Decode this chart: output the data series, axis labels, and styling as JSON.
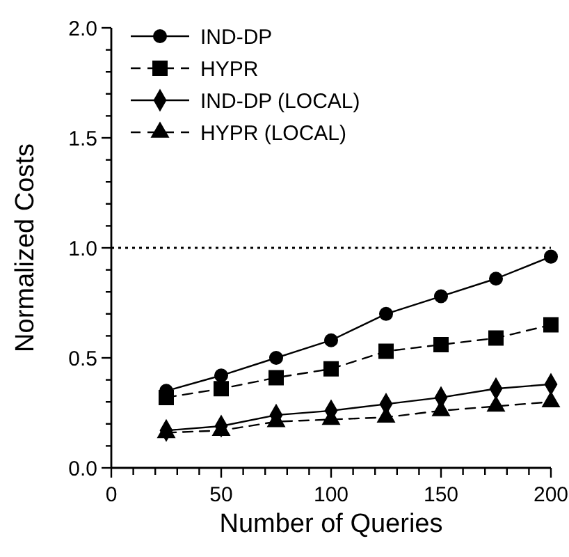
{
  "chart_data": {
    "type": "line",
    "xlabel": "Number of Queries",
    "ylabel": "Normalized Costs",
    "x": [
      25,
      50,
      75,
      100,
      125,
      150,
      175,
      200
    ],
    "series": [
      {
        "name": "IND-DP",
        "color": "#000000",
        "marker": "circle",
        "line_style": "solid",
        "values": [
          0.35,
          0.42,
          0.5,
          0.58,
          0.7,
          0.78,
          0.86,
          0.96
        ]
      },
      {
        "name": "HYPR",
        "color": "#000000",
        "marker": "square",
        "line_style": "dashed",
        "values": [
          0.32,
          0.36,
          0.41,
          0.45,
          0.53,
          0.56,
          0.59,
          0.65
        ]
      },
      {
        "name": "IND-DP (LOCAL)",
        "color": "#000000",
        "marker": "diamond",
        "line_style": "solid",
        "values": [
          0.17,
          0.19,
          0.24,
          0.26,
          0.29,
          0.32,
          0.36,
          0.38
        ]
      },
      {
        "name": "HYPR (LOCAL)",
        "color": "#000000",
        "marker": "triangle",
        "line_style": "dashed",
        "values": [
          0.16,
          0.17,
          0.21,
          0.22,
          0.23,
          0.26,
          0.28,
          0.3
        ]
      }
    ],
    "xlim": [
      0,
      200
    ],
    "xticks": [
      0,
      {
        "value": 10,
        "label": null
      },
      {
        "value": 20,
        "label": null
      },
      {
        "value": 30,
        "label": null
      },
      {
        "value": 40,
        "label": null
      },
      50,
      {
        "value": 60,
        "label": null
      },
      {
        "value": 70,
        "label": null
      },
      {
        "value": 80,
        "label": null
      },
      {
        "value": 90,
        "label": null
      },
      100,
      {
        "value": 110,
        "label": null
      },
      {
        "value": 120,
        "label": null
      },
      {
        "value": 130,
        "label": null
      },
      {
        "value": 140,
        "label": null
      },
      150,
      {
        "value": 160,
        "label": null
      },
      {
        "value": 170,
        "label": null
      },
      {
        "value": 180,
        "label": null
      },
      {
        "value": 190,
        "label": null
      },
      200
    ],
    "ylim": [
      0,
      2
    ],
    "yticks": [
      {
        "value": 0,
        "label": "0.0"
      },
      {
        "value": 0.1,
        "label": null
      },
      {
        "value": 0.2,
        "label": null
      },
      {
        "value": 0.3,
        "label": null
      },
      {
        "value": 0.4,
        "label": null
      },
      0.5,
      {
        "value": 0.6,
        "label": null
      },
      {
        "value": 0.7,
        "label": null
      },
      {
        "value": 0.8,
        "label": null
      },
      {
        "value": 0.9,
        "label": null
      },
      {
        "value": 1,
        "label": "1.0"
      },
      {
        "value": 1.1,
        "label": null
      },
      {
        "value": 1.2,
        "label": null
      },
      {
        "value": 1.3,
        "label": null
      },
      {
        "value": 1.4,
        "label": null
      },
      1.5,
      {
        "value": 1.6,
        "label": null
      },
      {
        "value": 1.7,
        "label": null
      },
      {
        "value": 1.8,
        "label": null
      },
      {
        "value": 1.9,
        "label": null
      },
      {
        "value": 2,
        "label": "2.0"
      }
    ],
    "ref_lines": [
      {
        "axis": "y",
        "value": 1,
        "color": "#000000",
        "line_style": "dotted"
      }
    ],
    "legend": "top left"
  }
}
